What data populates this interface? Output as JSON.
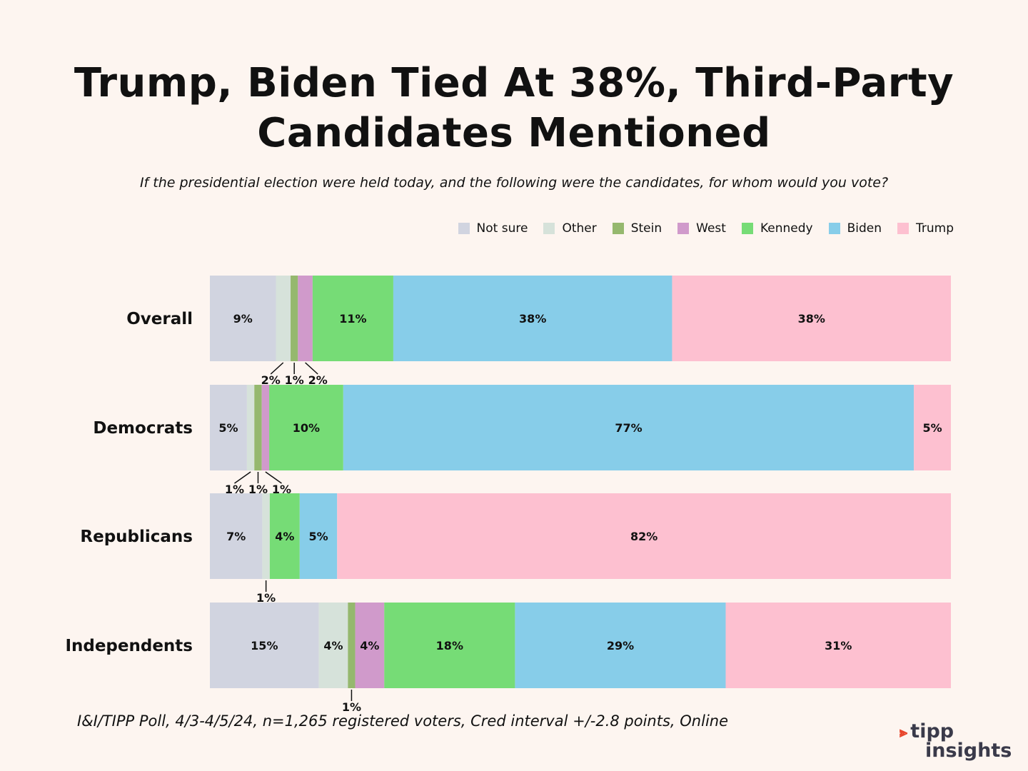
{
  "title_line1": "Trump, Biden Tied At 38%, Third-Party",
  "title_line2": "Candidates Mentioned",
  "subtitle": "If the presidential election were held today, and the following were the candidates, for whom would you vote?",
  "footnote": "I&I/TIPP Poll, 4/3-4/5/24, n=1,265 registered voters, Cred interval +/-2.8 points, Online",
  "logo": {
    "top": "tipp",
    "bottom": "insights"
  },
  "chart_data": {
    "type": "bar",
    "orientation": "horizontal-stacked",
    "legend_position": "top-right",
    "categories": [
      "Overall",
      "Democrats",
      "Republicans",
      "Independents"
    ],
    "series": [
      {
        "name": "Not sure",
        "color": "#d1d4e0",
        "values": [
          9,
          5,
          7,
          15
        ],
        "labels": [
          "9%",
          "5%",
          "7%",
          "15%"
        ]
      },
      {
        "name": "Other",
        "color": "#d6e2da",
        "values": [
          2,
          1,
          1,
          4
        ],
        "labels": [
          "2%",
          "1%",
          "1%",
          "4%"
        ]
      },
      {
        "name": "Stein",
        "color": "#95b86e",
        "values": [
          1,
          1,
          0,
          1
        ],
        "labels": [
          "1%",
          "1%",
          "",
          "1%"
        ]
      },
      {
        "name": "West",
        "color": "#d09acb",
        "values": [
          2,
          1,
          0,
          4
        ],
        "labels": [
          "2%",
          "1%",
          "",
          "4%"
        ]
      },
      {
        "name": "Kennedy",
        "color": "#76dc76",
        "values": [
          11,
          10,
          4,
          18
        ],
        "labels": [
          "11%",
          "10%",
          "4%",
          "18%"
        ]
      },
      {
        "name": "Biden",
        "color": "#87cde9",
        "values": [
          38,
          77,
          5,
          29
        ],
        "labels": [
          "38%",
          "77%",
          "5%",
          "29%"
        ]
      },
      {
        "name": "Trump",
        "color": "#fdc0d0",
        "values": [
          38,
          5,
          82,
          31
        ],
        "labels": [
          "38%",
          "5%",
          "82%",
          "31%"
        ]
      }
    ]
  }
}
